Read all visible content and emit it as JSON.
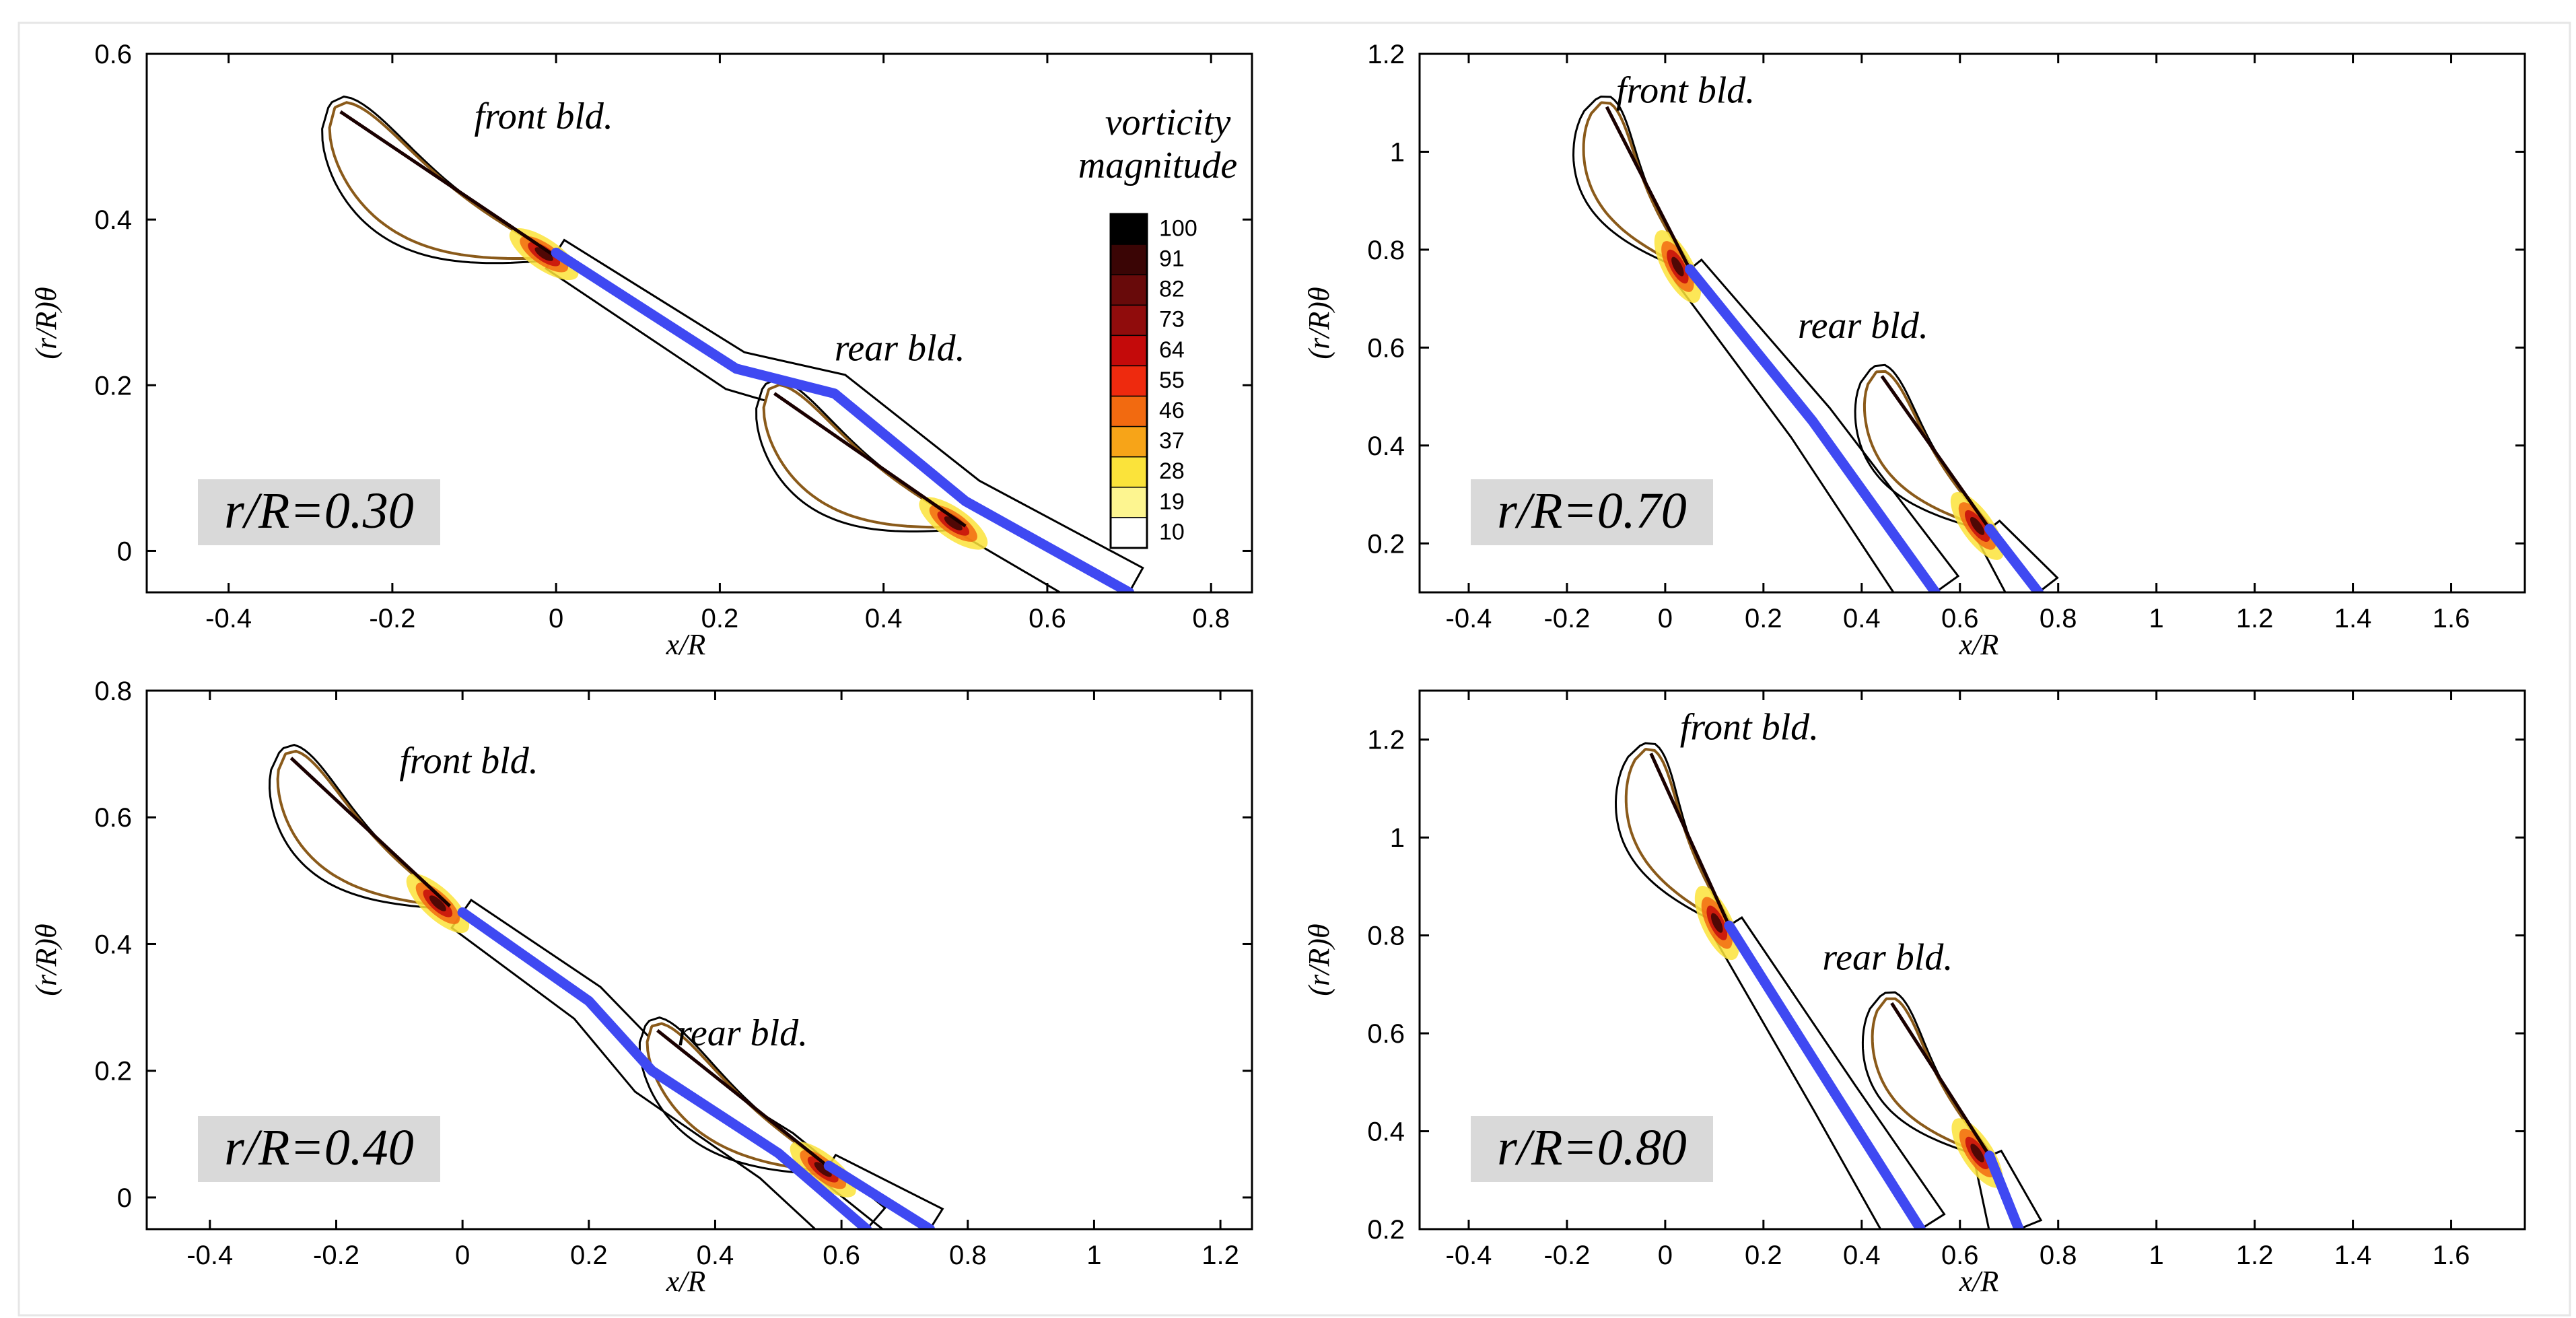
{
  "figure_caption": "",
  "colorbar": {
    "title_line1": "vorticity",
    "title_line2": "magnitude",
    "levels": [
      "100",
      "91",
      "82",
      "73",
      "64",
      "55",
      "46",
      "37",
      "28",
      "19",
      "10"
    ],
    "colors": [
      "#000000",
      "#3a0505",
      "#680a0a",
      "#900c0c",
      "#c40a0a",
      "#ee2a0e",
      "#f26a10",
      "#f7a418",
      "#fbe33a",
      "#fdf590",
      "#ffffff"
    ]
  },
  "colors": {
    "centerline": "#3f49f2",
    "contour": "#000000",
    "airfoil": "#8a5a1a",
    "label_box": "#d9d9d9"
  },
  "chart_data": [
    {
      "type": "contour",
      "panel": "top-left",
      "section_label": "r/R=0.30",
      "xlabel": "x/R",
      "ylabel": "(r/R)θ",
      "xlim": [
        -0.5,
        0.85
      ],
      "ylim": [
        -0.05,
        0.6
      ],
      "xticks": [
        -0.4,
        -0.2,
        0,
        0.2,
        0.4,
        0.6,
        0.8
      ],
      "xtick_labels": [
        "-0.4",
        "-0.2",
        "0",
        "0.2",
        "0.4",
        "0.6",
        "0.8"
      ],
      "yticks": [
        0,
        0.2,
        0.4,
        0.6
      ],
      "ytick_labels": [
        "0",
        "0.2",
        "0.4",
        "0.6"
      ],
      "front_label": "front bld.",
      "rear_label": "rear bld.",
      "front_label_at": [
        -0.1,
        0.51
      ],
      "rear_label_at": [
        0.34,
        0.23
      ],
      "front_airfoil": {
        "le": [
          -0.27,
          0.535
        ],
        "te": [
          0.0,
          0.355
        ],
        "thickness": 0.1
      },
      "rear_airfoil": {
        "le": [
          0.26,
          0.195
        ],
        "te": [
          0.5,
          0.03
        ],
        "thickness": 0.09
      },
      "centerline": [
        [
          0.0,
          0.36
        ],
        [
          0.22,
          0.22
        ],
        [
          0.34,
          0.19
        ],
        [
          0.5,
          0.06
        ],
        [
          0.7,
          -0.05
        ]
      ]
    },
    {
      "type": "contour",
      "panel": "top-right",
      "section_label": "r/R=0.70",
      "xlabel": "x/R",
      "ylabel": "(r/R)θ",
      "xlim": [
        -0.5,
        1.75
      ],
      "ylim": [
        0.1,
        1.2
      ],
      "xticks": [
        -0.4,
        -0.2,
        0,
        0.2,
        0.4,
        0.6,
        0.8,
        1,
        1.2,
        1.4,
        1.6
      ],
      "xtick_labels": [
        "-0.4",
        "-0.2",
        "0",
        "0.2",
        "0.4",
        "0.6",
        "0.8",
        "1",
        "1.2",
        "1.4",
        "1.6"
      ],
      "yticks": [
        0.2,
        0.4,
        0.6,
        0.8,
        1,
        1.2
      ],
      "ytick_labels": [
        "0.2",
        "0.4",
        "0.6",
        "0.8",
        "1",
        "1.2"
      ],
      "front_label": "front bld.",
      "rear_label": "rear bld.",
      "front_label_at": [
        -0.1,
        1.1
      ],
      "rear_label_at": [
        0.27,
        0.62
      ],
      "front_airfoil": {
        "le": [
          -0.13,
          1.1
        ],
        "te": [
          0.05,
          0.76
        ],
        "thickness": 0.12
      },
      "rear_airfoil": {
        "le": [
          0.43,
          0.55
        ],
        "te": [
          0.66,
          0.23
        ],
        "thickness": 0.12
      },
      "centerline": [
        [
          0.05,
          0.76
        ],
        [
          0.3,
          0.45
        ],
        [
          0.55,
          0.1
        ]
      ],
      "centerline2": [
        [
          0.66,
          0.23
        ],
        [
          0.76,
          0.1
        ]
      ]
    },
    {
      "type": "contour",
      "panel": "bottom-left",
      "section_label": "r/R=0.40",
      "xlabel": "x/R",
      "ylabel": "(r/R)θ",
      "xlim": [
        -0.5,
        1.25
      ],
      "ylim": [
        -0.05,
        0.8
      ],
      "xticks": [
        -0.4,
        -0.2,
        0,
        0.2,
        0.4,
        0.6,
        0.8,
        1,
        1.2
      ],
      "xtick_labels": [
        "-0.4",
        "-0.2",
        "0",
        "0.2",
        "0.4",
        "0.6",
        "0.8",
        "1",
        "1.2"
      ],
      "yticks": [
        0,
        0.2,
        0.4,
        0.6,
        0.8
      ],
      "ytick_labels": [
        "0",
        "0.2",
        "0.4",
        "0.6",
        "0.8"
      ],
      "front_label": "front bld.",
      "rear_label": "rear bld.",
      "front_label_at": [
        -0.1,
        0.67
      ],
      "rear_label_at": [
        0.34,
        0.24
      ],
      "front_airfoil": {
        "le": [
          -0.28,
          0.7
        ],
        "te": [
          -0.02,
          0.46
        ],
        "thickness": 0.11
      },
      "rear_airfoil": {
        "le": [
          0.3,
          0.27
        ],
        "te": [
          0.59,
          0.04
        ],
        "thickness": 0.1
      },
      "centerline": [
        [
          0.0,
          0.45
        ],
        [
          0.2,
          0.31
        ],
        [
          0.3,
          0.2
        ],
        [
          0.5,
          0.07
        ],
        [
          0.64,
          -0.05
        ]
      ],
      "centerline2": [
        [
          0.58,
          0.05
        ],
        [
          0.74,
          -0.05
        ]
      ]
    },
    {
      "type": "contour",
      "panel": "bottom-right",
      "section_label": "r/R=0.80",
      "xlabel": "x/R",
      "ylabel": "(r/R)θ",
      "xlim": [
        -0.5,
        1.75
      ],
      "ylim": [
        0.2,
        1.3
      ],
      "xticks": [
        -0.4,
        -0.2,
        0,
        0.2,
        0.4,
        0.6,
        0.8,
        1,
        1.2,
        1.4,
        1.6
      ],
      "xtick_labels": [
        "-0.4",
        "-0.2",
        "0",
        "0.2",
        "0.4",
        "0.6",
        "0.8",
        "1",
        "1.2",
        "1.4",
        "1.6"
      ],
      "yticks": [
        0.2,
        0.4,
        0.6,
        0.8,
        1,
        1.2
      ],
      "ytick_labels": [
        "0.2",
        "0.4",
        "0.6",
        "0.8",
        "1",
        "1.2"
      ],
      "front_label": "front bld.",
      "rear_label": "rear bld.",
      "front_label_at": [
        0.03,
        1.2
      ],
      "rear_label_at": [
        0.32,
        0.73
      ],
      "front_airfoil": {
        "le": [
          -0.04,
          1.18
        ],
        "te": [
          0.13,
          0.82
        ],
        "thickness": 0.12
      },
      "rear_airfoil": {
        "le": [
          0.45,
          0.67
        ],
        "te": [
          0.66,
          0.35
        ],
        "thickness": 0.12
      },
      "centerline": [
        [
          0.13,
          0.82
        ],
        [
          0.35,
          0.47
        ],
        [
          0.52,
          0.2
        ]
      ],
      "centerline2": [
        [
          0.66,
          0.35
        ],
        [
          0.72,
          0.2
        ]
      ]
    }
  ]
}
